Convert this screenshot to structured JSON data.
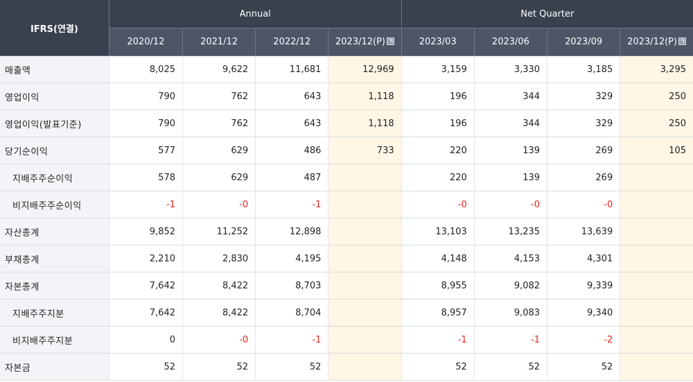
{
  "header": {
    "corner": "IFRS(연결)",
    "group_annual": "Annual",
    "group_quarter": "Net Quarter",
    "columns": [
      "2020/12",
      "2021/12",
      "2022/12",
      "2023/12(P)",
      "2023/03",
      "2023/06",
      "2023/09",
      "2023/12(P)"
    ],
    "estimate_icon": "help-box-icon"
  },
  "colors": {
    "header_bg": "#39414f",
    "estimate_bg": "#fff6e6",
    "negative": "#e8231d"
  },
  "rows": [
    {
      "label": "매출액",
      "sub": false,
      "values": [
        "8,025",
        "9,622",
        "11,681",
        "12,969",
        "3,159",
        "3,330",
        "3,185",
        "3,295"
      ]
    },
    {
      "label": "영업이익",
      "sub": false,
      "values": [
        "790",
        "762",
        "643",
        "1,118",
        "196",
        "344",
        "329",
        "250"
      ]
    },
    {
      "label": "영업이익(발표기준)",
      "sub": false,
      "values": [
        "790",
        "762",
        "643",
        "1,118",
        "196",
        "344",
        "329",
        "250"
      ]
    },
    {
      "label": "당기순이익",
      "sub": false,
      "values": [
        "577",
        "629",
        "486",
        "733",
        "220",
        "139",
        "269",
        "105"
      ]
    },
    {
      "label": "지배주주순이익",
      "sub": true,
      "values": [
        "578",
        "629",
        "487",
        "",
        "220",
        "139",
        "269",
        ""
      ]
    },
    {
      "label": "비지배주주순이익",
      "sub": true,
      "values": [
        "-1",
        "-0",
        "-1",
        "",
        "-0",
        "-0",
        "-0",
        ""
      ]
    },
    {
      "label": "자산총계",
      "sub": false,
      "values": [
        "9,852",
        "11,252",
        "12,898",
        "",
        "13,103",
        "13,235",
        "13,639",
        ""
      ]
    },
    {
      "label": "부채총계",
      "sub": false,
      "values": [
        "2,210",
        "2,830",
        "4,195",
        "",
        "4,148",
        "4,153",
        "4,301",
        ""
      ]
    },
    {
      "label": "자본총계",
      "sub": false,
      "values": [
        "7,642",
        "8,422",
        "8,703",
        "",
        "8,955",
        "9,082",
        "9,339",
        ""
      ]
    },
    {
      "label": "지배주주지분",
      "sub": true,
      "values": [
        "7,642",
        "8,422",
        "8,704",
        "",
        "8,957",
        "9,083",
        "9,340",
        ""
      ]
    },
    {
      "label": "비지배주주지분",
      "sub": true,
      "values": [
        "0",
        "-0",
        "-1",
        "",
        "-1",
        "-1",
        "-2",
        ""
      ]
    },
    {
      "label": "자본금",
      "sub": false,
      "values": [
        "52",
        "52",
        "52",
        "",
        "52",
        "52",
        "52",
        ""
      ]
    }
  ]
}
